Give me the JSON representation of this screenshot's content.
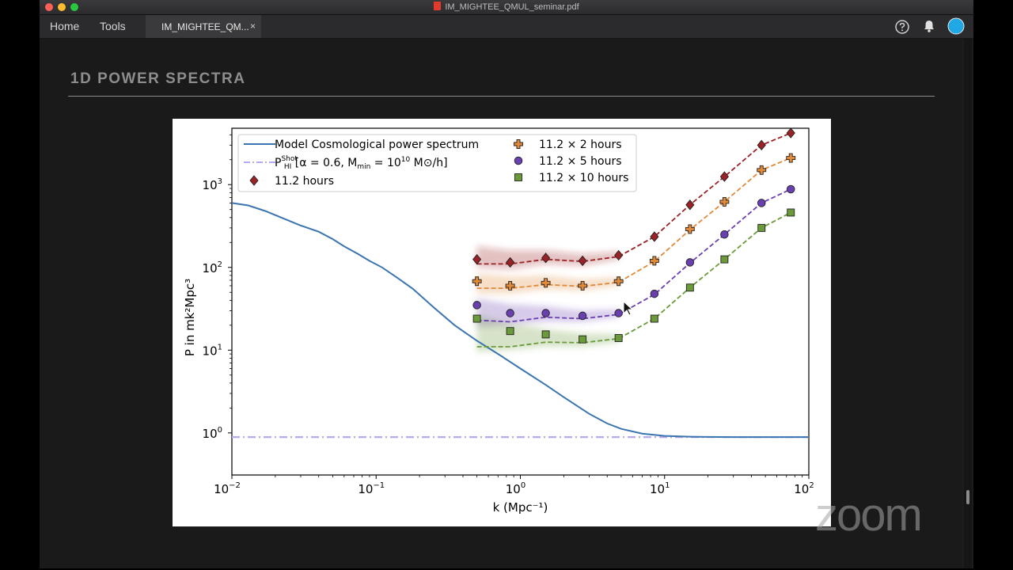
{
  "window": {
    "title": "IM_MIGHTEE_QMUL_seminar.pdf",
    "traffic_lights": [
      "#fe5f57",
      "#febc2e",
      "#28c840"
    ]
  },
  "toolbar": {
    "home_label": "Home",
    "tools_label": "Tools",
    "doc_tab_label": "IM_MIGHTEE_QM...",
    "close_glyph": "×",
    "help_icon": "help-circle-icon",
    "bell_icon": "bell-icon",
    "avatar_color": "#1fa7e6"
  },
  "slide": {
    "heading": "1D POWER SPECTRA"
  },
  "overlay": {
    "zoom_watermark": "zoom"
  },
  "chart_data": {
    "type": "line",
    "x_scale": "log",
    "y_scale": "log",
    "xlim": [
      0.01,
      100
    ],
    "ylim": [
      0.31,
      4800
    ],
    "xlabel": "k (Mpc⁻¹)",
    "ylabel": "P in mk²Mpc³",
    "x_ticks": [
      {
        "value": 0.01,
        "base": "10",
        "exp": "−2"
      },
      {
        "value": 0.1,
        "base": "10",
        "exp": "−1"
      },
      {
        "value": 1,
        "base": "10",
        "exp": "0"
      },
      {
        "value": 10,
        "base": "10",
        "exp": "1"
      },
      {
        "value": 100,
        "base": "10",
        "exp": "2"
      }
    ],
    "y_ticks": [
      {
        "value": 1,
        "base": "10",
        "exp": "0"
      },
      {
        "value": 10,
        "base": "10",
        "exp": "1"
      },
      {
        "value": 100,
        "base": "10",
        "exp": "2"
      },
      {
        "value": 1000,
        "base": "10",
        "exp": "3"
      }
    ],
    "legend_position": "top-left",
    "legend": [
      {
        "label": "Model Cosmological power spectrum",
        "marker": "line",
        "color": "#3b75af"
      },
      {
        "label_main": "P",
        "label_sup": "Shot",
        "label_sub": "HI",
        "label_rest": " [α = 0.6, M",
        "label_min": "min",
        "label_eq": " = 10",
        "label_exp": "10",
        "label_end": " M⊙/h]",
        "marker": "dashdot",
        "color": "#b8a8ee"
      },
      {
        "label": "11.2 hours",
        "marker": "diamond",
        "color": "#9b2226"
      },
      {
        "label": "11.2 × 2 hours",
        "marker": "plus",
        "color": "#e08a3a"
      },
      {
        "label": "11.2 × 5 hours",
        "marker": "circle",
        "color": "#6a3fb0"
      },
      {
        "label": "11.2 × 10 hours",
        "marker": "square",
        "color": "#6a9a3a"
      }
    ],
    "model": {
      "name": "Model Cosmological power spectrum",
      "color": "#3b75af",
      "x": [
        0.01,
        0.013,
        0.017,
        0.022,
        0.03,
        0.04,
        0.05,
        0.06,
        0.075,
        0.09,
        0.11,
        0.14,
        0.18,
        0.25,
        0.35,
        0.5,
        0.7,
        1,
        1.5,
        2,
        3,
        4,
        5,
        7,
        10,
        15,
        20,
        30,
        50,
        100
      ],
      "y": [
        600,
        560,
        480,
        400,
        320,
        270,
        220,
        180,
        145,
        120,
        100,
        75,
        55,
        33,
        20,
        13,
        9,
        6,
        3.8,
        2.7,
        1.7,
        1.3,
        1.12,
        0.98,
        0.92,
        0.9,
        0.895,
        0.89,
        0.89,
        0.89
      ]
    },
    "shot_noise": {
      "color": "#b8a8ee",
      "x": [
        0.01,
        100
      ],
      "y": [
        0.89,
        0.89
      ]
    },
    "series": [
      {
        "name": "11.2 hours",
        "marker": "diamond",
        "color": "#9b2226",
        "x": [
          0.5,
          0.85,
          1.5,
          2.7,
          4.8,
          8.5,
          15,
          26,
          47,
          75
        ],
        "y": [
          125,
          115,
          130,
          120,
          140,
          235,
          570,
          1250,
          3000,
          4200
        ],
        "model_y": [
          110,
          110,
          125,
          118,
          135,
          235,
          570,
          1250,
          3000,
          4200
        ],
        "band": [
          {
            "lo": 100,
            "hi": 180
          },
          {
            "lo": 95,
            "hi": 160
          },
          {
            "lo": 110,
            "hi": 160
          },
          {
            "lo": 105,
            "hi": 145
          },
          {
            "lo": 125,
            "hi": 155
          }
        ]
      },
      {
        "name": "11.2 × 2 hours",
        "marker": "plus",
        "color": "#e08a3a",
        "x": [
          0.5,
          0.85,
          1.5,
          2.7,
          4.8,
          8.5,
          15,
          26,
          47,
          75
        ],
        "y": [
          68,
          60,
          65,
          60,
          68,
          120,
          290,
          620,
          1500,
          2100
        ],
        "model_y": [
          56,
          56,
          62,
          59,
          66,
          118,
          285,
          620,
          1500,
          2100
        ],
        "band": [
          {
            "lo": 48,
            "hi": 85
          },
          {
            "lo": 48,
            "hi": 78
          },
          {
            "lo": 54,
            "hi": 80
          },
          {
            "lo": 52,
            "hi": 72
          },
          {
            "lo": 60,
            "hi": 76
          }
        ]
      },
      {
        "name": "11.2 × 5 hours",
        "marker": "circle",
        "color": "#6a3fb0",
        "x": [
          0.5,
          0.85,
          1.5,
          2.7,
          4.8,
          8.5,
          15,
          26,
          47,
          75
        ],
        "y": [
          35,
          28,
          28,
          26,
          28,
          48,
          115,
          250,
          600,
          880
        ],
        "model_y": [
          23,
          22,
          25,
          24,
          27,
          47,
          113,
          250,
          600,
          880
        ],
        "band": [
          {
            "lo": 19,
            "hi": 42
          },
          {
            "lo": 20,
            "hi": 36
          },
          {
            "lo": 22,
            "hi": 34
          },
          {
            "lo": 22,
            "hi": 30
          },
          {
            "lo": 25,
            "hi": 31
          }
        ]
      },
      {
        "name": "11.2 × 10 hours",
        "marker": "square",
        "color": "#6a9a3a",
        "x": [
          0.5,
          0.85,
          1.5,
          2.7,
          4.8,
          8.5,
          15,
          26,
          47,
          75
        ],
        "y": [
          24,
          17,
          15.5,
          13.5,
          14,
          24,
          57,
          125,
          300,
          460
        ],
        "model_y": [
          11,
          11,
          12.5,
          12.3,
          13.8,
          24,
          57,
          125,
          300,
          460
        ],
        "band": [
          {
            "lo": 9.5,
            "hi": 27
          },
          {
            "lo": 10,
            "hi": 21
          },
          {
            "lo": 11,
            "hi": 18
          },
          {
            "lo": 11,
            "hi": 16
          },
          {
            "lo": 12.5,
            "hi": 15.5
          }
        ]
      }
    ]
  }
}
